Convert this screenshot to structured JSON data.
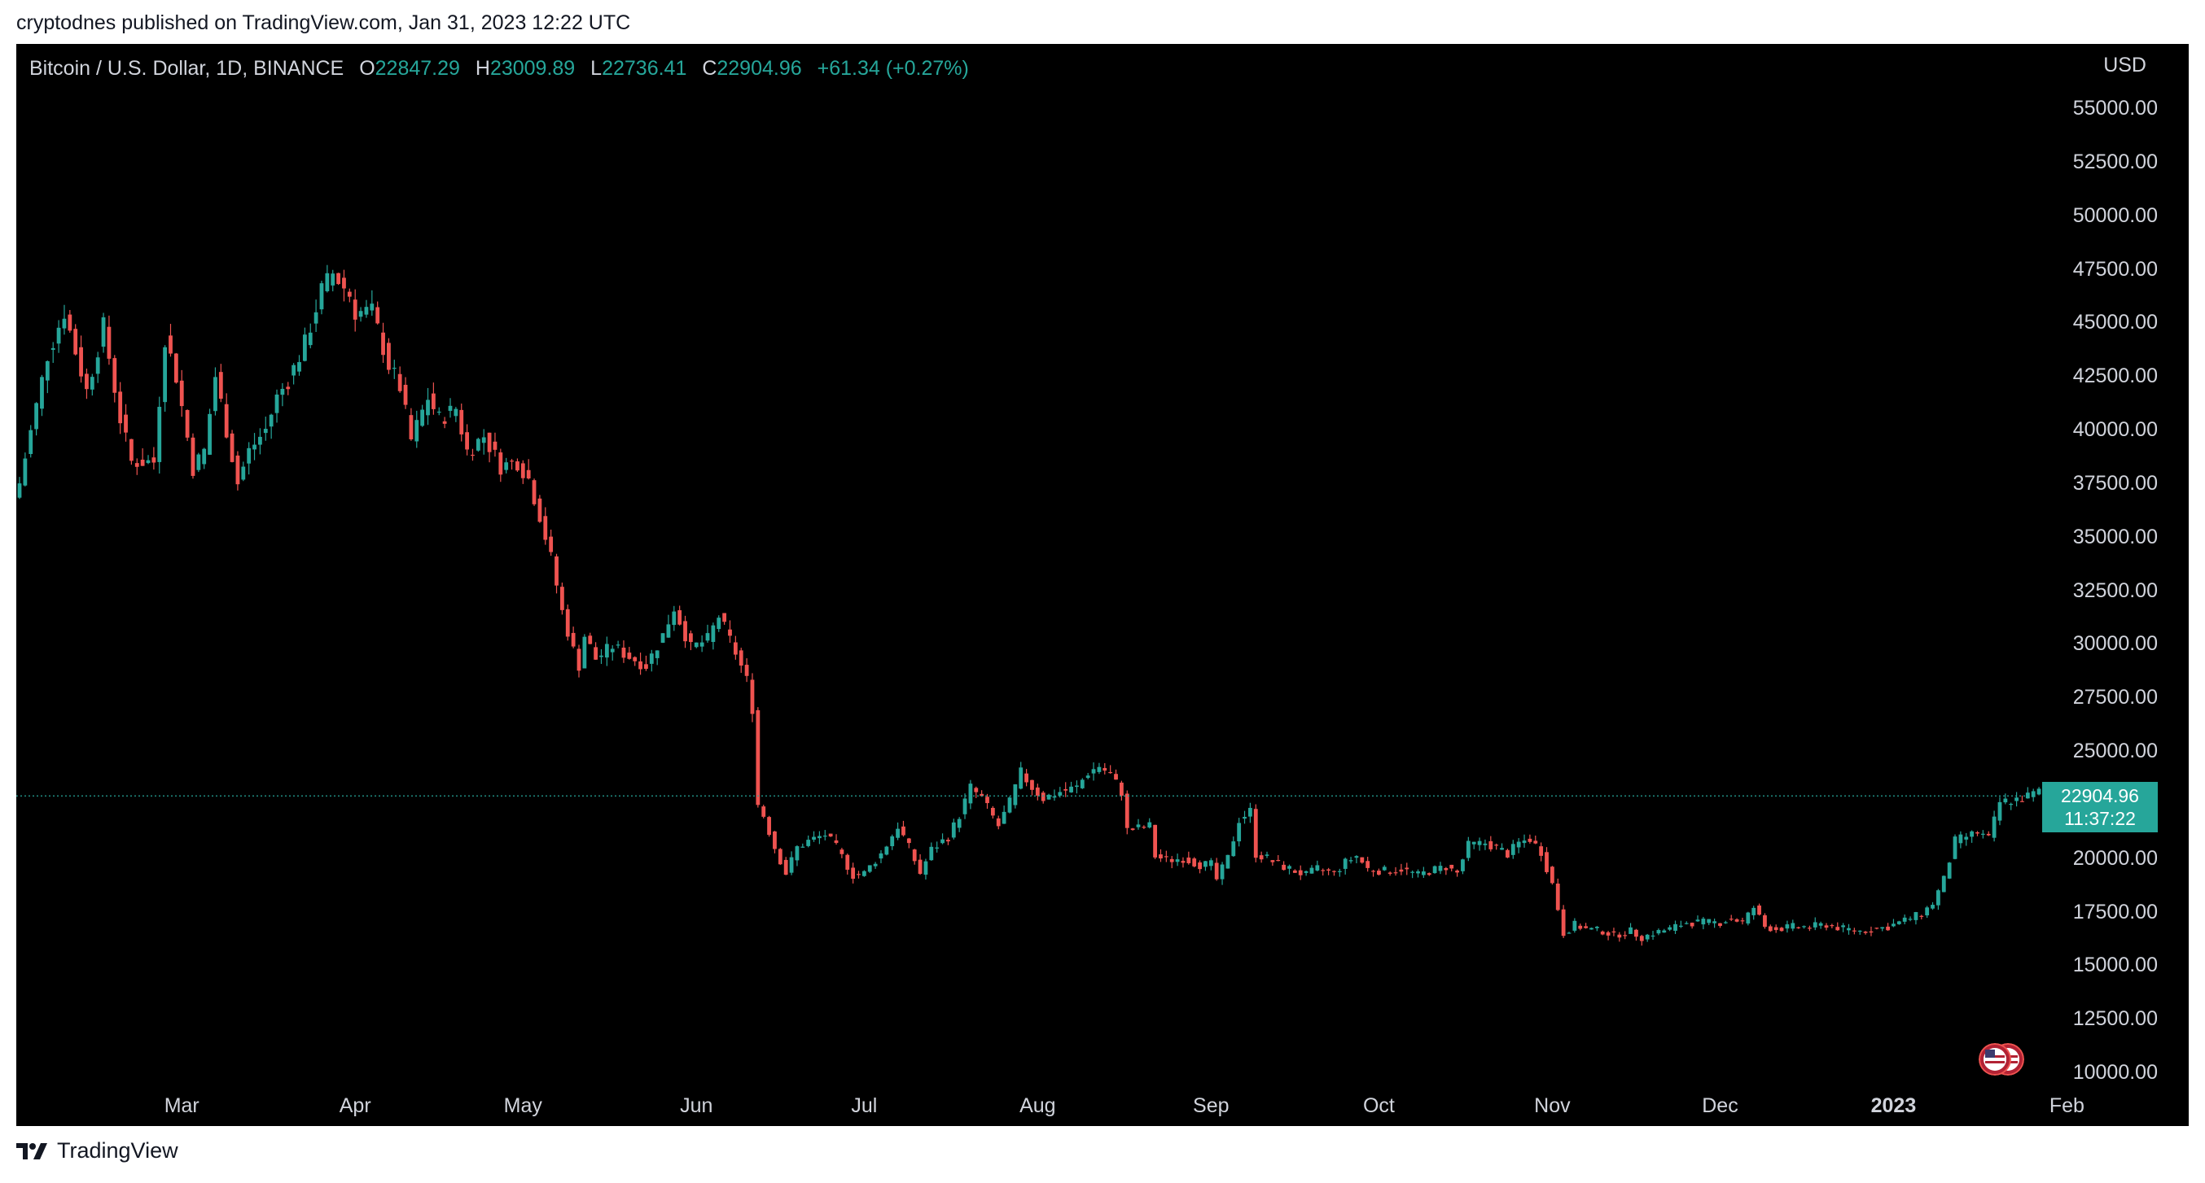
{
  "header": {
    "published_text": "cryptodnes published on TradingView.com, Jan 31, 2023 12:22 UTC"
  },
  "legend": {
    "symbol": "Bitcoin / U.S. Dollar, 1D, BINANCE",
    "open_label": "O",
    "open": "22847.29",
    "high_label": "H",
    "high": "23009.89",
    "low_label": "L",
    "low": "22736.41",
    "close_label": "C",
    "close": "22904.96",
    "change": "+61.34 (+0.27%)"
  },
  "price_axis": {
    "currency": "USD",
    "ticks": [
      "55000.00",
      "52500.00",
      "50000.00",
      "47500.00",
      "45000.00",
      "42500.00",
      "40000.00",
      "37500.00",
      "35000.00",
      "32500.00",
      "30000.00",
      "27500.00",
      "25000.00",
      "22500.00",
      "20000.00",
      "17500.00",
      "15000.00",
      "12500.00",
      "10000.00"
    ]
  },
  "last_price_badge": {
    "price": "22904.96",
    "countdown": "11:37:22"
  },
  "footer": {
    "brand": "TradingView"
  },
  "colors": {
    "up": "#26a69a",
    "down": "#ef5350",
    "background": "#000000",
    "text": "#d1d4dc"
  },
  "chart_data": {
    "type": "candlestick",
    "title": "Bitcoin / U.S. Dollar, 1D, BINANCE",
    "xlabel": "",
    "ylabel": "",
    "ylim": [
      7500,
      58000
    ],
    "grid": false,
    "x_tick_labels": [
      "Mar",
      "Apr",
      "May",
      "Jun",
      "Jul",
      "Aug",
      "Sep",
      "Oct",
      "Nov",
      "Dec",
      "2023",
      "Feb"
    ],
    "x_tick_positions": [
      29,
      60,
      90,
      121,
      151,
      182,
      213,
      243,
      274,
      304,
      335,
      366
    ],
    "bold_tick": "2023",
    "start_date": "2022-02-01",
    "anchors": [
      [
        0,
        37500
      ],
      [
        5,
        43500
      ],
      [
        8,
        45500
      ],
      [
        12,
        41800
      ],
      [
        15,
        44800
      ],
      [
        18,
        40500
      ],
      [
        20,
        38500
      ],
      [
        24,
        38500
      ],
      [
        26,
        44300
      ],
      [
        28,
        42500
      ],
      [
        31,
        38200
      ],
      [
        33,
        39000
      ],
      [
        35,
        42500
      ],
      [
        39,
        37500
      ],
      [
        41,
        39000
      ],
      [
        44,
        40000
      ],
      [
        46,
        41500
      ],
      [
        48,
        42300
      ],
      [
        51,
        44000
      ],
      [
        54,
        46500
      ],
      [
        56,
        47300
      ],
      [
        59,
        46300
      ],
      [
        60,
        45500
      ],
      [
        63,
        45500
      ],
      [
        66,
        43000
      ],
      [
        68,
        42000
      ],
      [
        70,
        39500
      ],
      [
        73,
        41500
      ],
      [
        75,
        40500
      ],
      [
        78,
        41000
      ],
      [
        80,
        39000
      ],
      [
        83,
        39700
      ],
      [
        86,
        38300
      ],
      [
        89,
        38500
      ],
      [
        91,
        37700
      ],
      [
        93,
        36000
      ],
      [
        95,
        34000
      ],
      [
        97,
        31500
      ],
      [
        99,
        29700
      ],
      [
        100,
        29000
      ],
      [
        101,
        30400
      ],
      [
        103,
        29300
      ],
      [
        106,
        29900
      ],
      [
        109,
        29400
      ],
      [
        112,
        29000
      ],
      [
        115,
        30400
      ],
      [
        117,
        31700
      ],
      [
        120,
        29800
      ],
      [
        123,
        30200
      ],
      [
        125,
        31300
      ],
      [
        128,
        29600
      ],
      [
        130,
        28300
      ],
      [
        131,
        27000
      ],
      [
        132,
        22500
      ],
      [
        133,
        22000
      ],
      [
        135,
        20500
      ],
      [
        137,
        19300
      ],
      [
        139,
        20500
      ],
      [
        141,
        20800
      ],
      [
        144,
        21100
      ],
      [
        146,
        20500
      ],
      [
        149,
        19200
      ],
      [
        151,
        19300
      ],
      [
        154,
        20200
      ],
      [
        157,
        21500
      ],
      [
        159,
        20500
      ],
      [
        161,
        19300
      ],
      [
        163,
        20400
      ],
      [
        166,
        21000
      ],
      [
        168,
        22000
      ],
      [
        170,
        23300
      ],
      [
        172,
        22800
      ],
      [
        175,
        21500
      ],
      [
        177,
        22600
      ],
      [
        179,
        24000
      ],
      [
        181,
        23300
      ],
      [
        183,
        22800
      ],
      [
        186,
        23100
      ],
      [
        189,
        23300
      ],
      [
        191,
        24000
      ],
      [
        193,
        24300
      ],
      [
        195,
        23900
      ],
      [
        197,
        23100
      ],
      [
        198,
        21300
      ],
      [
        200,
        21400
      ],
      [
        202,
        21500
      ],
      [
        203,
        20100
      ],
      [
        205,
        19900
      ],
      [
        208,
        20000
      ],
      [
        211,
        19700
      ],
      [
        213,
        19700
      ],
      [
        214,
        19000
      ],
      [
        216,
        20000
      ],
      [
        218,
        21800
      ],
      [
        220,
        22200
      ],
      [
        221,
        20200
      ],
      [
        223,
        20000
      ],
      [
        225,
        19700
      ],
      [
        228,
        19400
      ],
      [
        230,
        19200
      ],
      [
        232,
        19500
      ],
      [
        235,
        19300
      ],
      [
        237,
        19800
      ],
      [
        239,
        20100
      ],
      [
        241,
        19500
      ],
      [
        244,
        19400
      ],
      [
        247,
        19500
      ],
      [
        250,
        19200
      ],
      [
        252,
        19400
      ],
      [
        255,
        19600
      ],
      [
        257,
        19300
      ],
      [
        259,
        20600
      ],
      [
        262,
        20700
      ],
      [
        264,
        20500
      ],
      [
        266,
        20200
      ],
      [
        268,
        20700
      ],
      [
        270,
        20900
      ],
      [
        272,
        20300
      ],
      [
        274,
        18800
      ],
      [
        276,
        16500
      ],
      [
        278,
        16900
      ],
      [
        280,
        16700
      ],
      [
        283,
        16600
      ],
      [
        285,
        16400
      ],
      [
        288,
        16600
      ],
      [
        290,
        16300
      ],
      [
        292,
        16500
      ],
      [
        295,
        16700
      ],
      [
        298,
        17000
      ],
      [
        301,
        17000
      ],
      [
        304,
        17000
      ],
      [
        306,
        17200
      ],
      [
        308,
        17000
      ],
      [
        310,
        17700
      ],
      [
        312,
        16800
      ],
      [
        314,
        16700
      ],
      [
        317,
        16800
      ],
      [
        320,
        16800
      ],
      [
        323,
        16900
      ],
      [
        326,
        16700
      ],
      [
        329,
        16600
      ],
      [
        332,
        16700
      ],
      [
        334,
        16800
      ],
      [
        336,
        17000
      ],
      [
        338,
        17200
      ],
      [
        340,
        17400
      ],
      [
        342,
        17900
      ],
      [
        344,
        19000
      ],
      [
        346,
        20800
      ],
      [
        348,
        21000
      ],
      [
        350,
        21200
      ],
      [
        352,
        20900
      ],
      [
        354,
        22600
      ],
      [
        356,
        22700
      ],
      [
        358,
        22800
      ],
      [
        360,
        23000
      ],
      [
        362,
        23200
      ],
      [
        363,
        22800
      ],
      [
        364,
        23400
      ],
      [
        365,
        22900
      ]
    ],
    "last_candle": {
      "open": 22847.29,
      "high": 23009.89,
      "low": 22736.41,
      "close": 22904.96
    },
    "last_price": 22904.96
  }
}
